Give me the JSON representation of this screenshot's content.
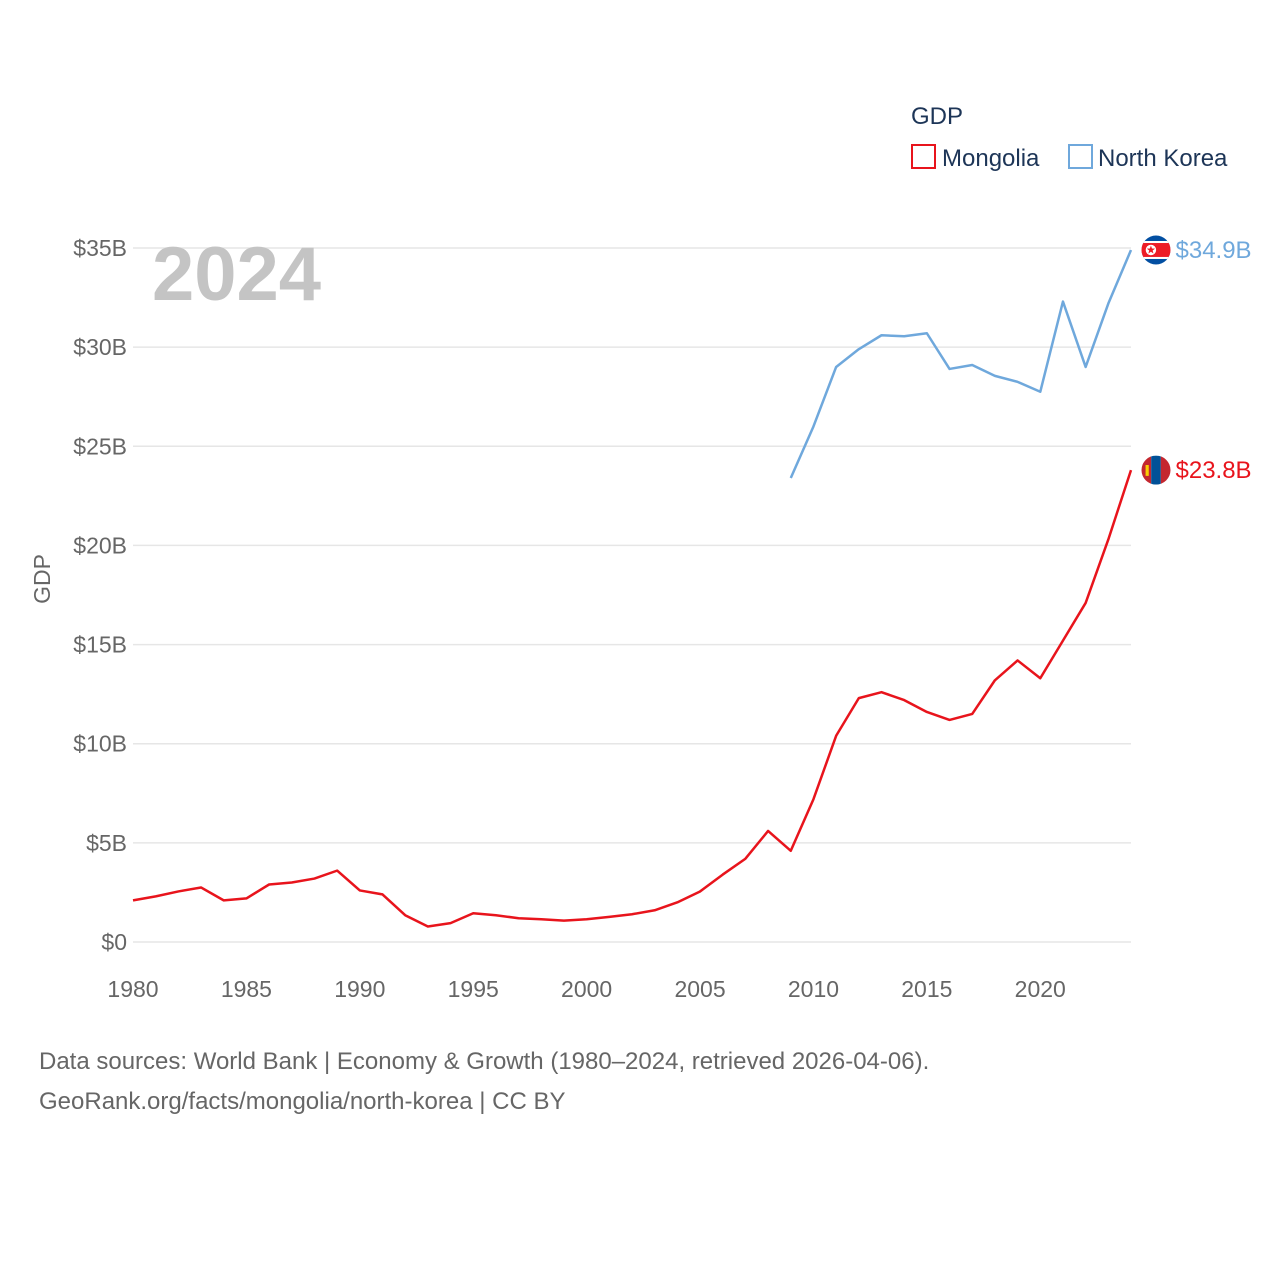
{
  "chart_data": {
    "type": "line",
    "title": "",
    "year_label": "2024",
    "ylabel": "GDP",
    "xlabel": "",
    "xlim": [
      1980,
      2024
    ],
    "ylim": [
      0,
      35
    ],
    "x_ticks": [
      1980,
      1985,
      1990,
      1995,
      2000,
      2005,
      2010,
      2015,
      2020
    ],
    "x_tick_labels": [
      "1980",
      "1985",
      "1990",
      "1995",
      "2000",
      "2005",
      "2010",
      "2015",
      "2020"
    ],
    "y_ticks": [
      0,
      5,
      10,
      15,
      20,
      25,
      30,
      35
    ],
    "y_tick_labels": [
      "$0",
      "$5B",
      "$10B",
      "$15B",
      "$20B",
      "$25B",
      "$30B",
      "$35B"
    ],
    "legend": {
      "title": "GDP",
      "position": "top-right",
      "entries": [
        "Mongolia",
        "North Korea"
      ]
    },
    "series": [
      {
        "name": "Mongolia",
        "color": "#e8141c",
        "end_label": "$23.8B",
        "flag": "mongolia-flag",
        "x": [
          1980,
          1981,
          1982,
          1983,
          1984,
          1985,
          1986,
          1987,
          1988,
          1989,
          1990,
          1991,
          1992,
          1993,
          1994,
          1995,
          1996,
          1997,
          1998,
          1999,
          2000,
          2001,
          2002,
          2003,
          2004,
          2005,
          2006,
          2007,
          2008,
          2009,
          2010,
          2011,
          2012,
          2013,
          2014,
          2015,
          2016,
          2017,
          2018,
          2019,
          2020,
          2021,
          2022,
          2023,
          2024
        ],
        "values": [
          2.1,
          2.3,
          2.55,
          2.75,
          2.1,
          2.2,
          2.9,
          3.0,
          3.2,
          3.6,
          2.6,
          2.4,
          1.35,
          0.78,
          0.95,
          1.45,
          1.35,
          1.2,
          1.15,
          1.08,
          1.15,
          1.27,
          1.4,
          1.6,
          2.0,
          2.55,
          3.4,
          4.2,
          5.6,
          4.6,
          7.2,
          10.4,
          12.3,
          12.6,
          12.2,
          11.6,
          11.2,
          11.5,
          13.2,
          14.2,
          13.3,
          15.2,
          17.1,
          20.3,
          23.8
        ]
      },
      {
        "name": "North Korea",
        "color": "#6fa8dc",
        "end_label": "$34.9B",
        "flag": "north-korea-flag",
        "x": [
          2009,
          2010,
          2011,
          2012,
          2013,
          2014,
          2015,
          2016,
          2017,
          2018,
          2019,
          2020,
          2021,
          2022,
          2023,
          2024
        ],
        "values": [
          23.4,
          26.0,
          29.0,
          29.9,
          30.6,
          30.55,
          30.7,
          28.9,
          29.1,
          28.55,
          28.25,
          27.75,
          32.3,
          29.0,
          32.2,
          34.9
        ]
      }
    ]
  },
  "footer": {
    "line1": "Data sources: World Bank | Economy & Growth (1980–2024, retrieved 2026-04-06).",
    "line2": "GeoRank.org/facts/mongolia/north-korea | CC BY"
  }
}
